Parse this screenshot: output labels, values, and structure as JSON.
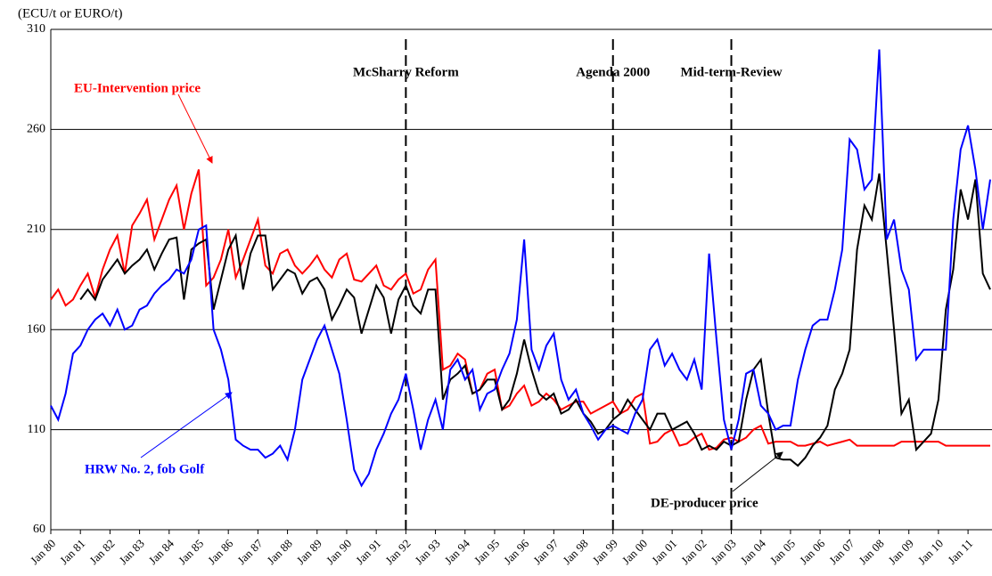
{
  "chart_data": {
    "type": "line",
    "y_axis_label": "(ECU/t or EURO/t)",
    "categories": [
      "Jan 80",
      null,
      null,
      null,
      "Jan 81",
      null,
      null,
      null,
      "Jan 82",
      null,
      null,
      null,
      "Jan 83",
      null,
      null,
      null,
      "Jan 84",
      null,
      null,
      null,
      "Jan 85",
      null,
      null,
      null,
      "Jan 86",
      null,
      null,
      null,
      "Jan 87",
      null,
      null,
      null,
      "Jan 88",
      null,
      null,
      null,
      "Jan 89",
      null,
      null,
      null,
      "Jan 90",
      null,
      null,
      null,
      "Jan 91",
      null,
      null,
      null,
      "Jan 92",
      null,
      null,
      null,
      "Jan 93",
      null,
      null,
      null,
      "Jan 94",
      null,
      null,
      null,
      "Jan 95",
      null,
      null,
      null,
      "Jan 96",
      null,
      null,
      null,
      "Jan 97",
      null,
      null,
      null,
      "Jan 98",
      null,
      null,
      null,
      "Jan 99",
      null,
      null,
      null,
      "Jan 00",
      null,
      null,
      null,
      "Jan 01",
      null,
      null,
      null,
      "Jan 02",
      null,
      null,
      null,
      "Jan 03",
      null,
      null,
      null,
      "Jan 04",
      null,
      null,
      null,
      "Jan 05",
      null,
      null,
      null,
      "Jan 06",
      null,
      null,
      null,
      "Jan 07",
      null,
      null,
      null,
      "Jan 08",
      null,
      null,
      null,
      "Jan 09",
      null,
      null,
      null,
      "Jan 10",
      null,
      null,
      null,
      "Jan 11",
      null,
      null,
      null
    ],
    "series": [
      {
        "name": "EU-Intervention price",
        "color": "#ff0000",
        "values": [
          175,
          180,
          172,
          175,
          182,
          188,
          176,
          190,
          200,
          207,
          188,
          212,
          218,
          225,
          205,
          215,
          225,
          232,
          210,
          228,
          240,
          182,
          186,
          195,
          210,
          186,
          195,
          205,
          215,
          192,
          188,
          198,
          200,
          192,
          188,
          192,
          197,
          190,
          186,
          195,
          198,
          185,
          184,
          188,
          192,
          182,
          180,
          185,
          188,
          178,
          180,
          190,
          195,
          140,
          142,
          148,
          145,
          128,
          130,
          138,
          140,
          120,
          122,
          128,
          132,
          122,
          124,
          128,
          125,
          120,
          122,
          124,
          124,
          118,
          120,
          122,
          124,
          118,
          120,
          126,
          128,
          103,
          104,
          108,
          110,
          102,
          103,
          106,
          108,
          100,
          101,
          105,
          106,
          104,
          106,
          110,
          112,
          103,
          104,
          104,
          104,
          102,
          102,
          103,
          104,
          102,
          103,
          104,
          105,
          102,
          102,
          102,
          102,
          102,
          102,
          104,
          104,
          104,
          104,
          104,
          104,
          102,
          102,
          102,
          102,
          102,
          102,
          102
        ]
      },
      {
        "name": "DE-producer price",
        "color": "#000000",
        "values": [
          null,
          null,
          null,
          null,
          175,
          180,
          175,
          185,
          190,
          195,
          188,
          192,
          195,
          200,
          190,
          198,
          205,
          206,
          175,
          200,
          203,
          205,
          170,
          185,
          200,
          207,
          180,
          198,
          207,
          207,
          180,
          185,
          190,
          188,
          178,
          184,
          186,
          180,
          165,
          172,
          180,
          176,
          158,
          170,
          182,
          176,
          158,
          175,
          182,
          172,
          168,
          180,
          180,
          125,
          135,
          138,
          142,
          128,
          130,
          135,
          135,
          120,
          125,
          138,
          155,
          140,
          128,
          125,
          128,
          118,
          120,
          125,
          118,
          114,
          108,
          110,
          115,
          118,
          125,
          120,
          115,
          110,
          118,
          118,
          110,
          112,
          114,
          108,
          100,
          102,
          100,
          104,
          102,
          104,
          125,
          140,
          145,
          118,
          96,
          95,
          95,
          92,
          96,
          102,
          106,
          112,
          130,
          138,
          150,
          200,
          222,
          215,
          238,
          200,
          160,
          118,
          125,
          100,
          104,
          108,
          125,
          170,
          190,
          230,
          215,
          235,
          188,
          180
        ]
      },
      {
        "name": "HRW No. 2, fob Golf",
        "color": "#0000ff",
        "values": [
          122,
          115,
          128,
          148,
          152,
          160,
          165,
          168,
          162,
          170,
          160,
          162,
          170,
          172,
          178,
          182,
          185,
          190,
          188,
          195,
          210,
          212,
          160,
          150,
          135,
          105,
          102,
          100,
          100,
          96,
          98,
          102,
          95,
          110,
          135,
          145,
          155,
          162,
          150,
          138,
          115,
          90,
          82,
          88,
          100,
          108,
          118,
          125,
          138,
          120,
          100,
          115,
          125,
          110,
          140,
          145,
          135,
          140,
          120,
          128,
          130,
          140,
          148,
          165,
          205,
          150,
          140,
          152,
          158,
          135,
          125,
          130,
          118,
          112,
          105,
          110,
          112,
          110,
          108,
          118,
          125,
          150,
          155,
          142,
          148,
          140,
          135,
          145,
          130,
          198,
          155,
          115,
          100,
          115,
          138,
          140,
          122,
          118,
          110,
          112,
          112,
          135,
          150,
          162,
          165,
          165,
          180,
          200,
          255,
          250,
          230,
          235,
          300,
          205,
          215,
          190,
          180,
          145,
          150,
          150,
          150,
          150,
          215,
          250,
          262,
          240,
          210,
          235
        ]
      }
    ],
    "events": [
      {
        "label": "McSharry Reform",
        "x": "Jan 92"
      },
      {
        "label": "Agenda 2000",
        "x": "Jan 99"
      },
      {
        "label": "Mid-term-Review",
        "x": "Jan 03"
      }
    ],
    "ylim": [
      60,
      310
    ],
    "yticks": [
      60,
      110,
      160,
      210,
      260,
      310
    ],
    "grid": true
  }
}
